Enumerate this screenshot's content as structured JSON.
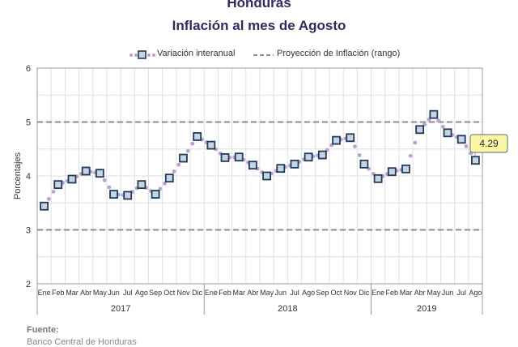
{
  "header": {
    "title": "Honduras",
    "subtitle": "Inflación al mes de Agosto"
  },
  "legend": {
    "series_label": "Variación interanual",
    "projection_label": "Proyección de Inflación (rango)"
  },
  "footer": {
    "source_label": "Fuente:",
    "source_text": "Banco Central de Honduras"
  },
  "colors": {
    "marker_edge": "#1f3b57",
    "marker_fill": "#c7d4e6",
    "dots": "#b9a2cf",
    "projection": "#8c8c8c",
    "grid": "#e0e0e0",
    "callout_fill": "#fcf7a6",
    "title": "#2d2d5e"
  },
  "chart_data": {
    "type": "line",
    "ylabel": "Porcentajes",
    "ylim": [
      2,
      6
    ],
    "yticks": [
      "2",
      "3",
      "4",
      "5",
      "6"
    ],
    "months": [
      "Ene",
      "Feb",
      "Mar",
      "Abr",
      "May",
      "Jun",
      "Jul",
      "Ago",
      "Sep",
      "Oct",
      "Nov",
      "Dic",
      "Ene",
      "Feb",
      "Mar",
      "Abr",
      "May",
      "Jun",
      "Jul",
      "Ago",
      "Sep",
      "Oct",
      "Nov",
      "Dic",
      "Ene",
      "Feb",
      "Mar",
      "Abr",
      "May",
      "Jun",
      "Jul",
      "Ago"
    ],
    "years": [
      {
        "label": "2017",
        "start": 0,
        "count": 12
      },
      {
        "label": "2018",
        "start": 12,
        "count": 12
      },
      {
        "label": "2019",
        "start": 24,
        "count": 8
      }
    ],
    "series": [
      {
        "name": "Variación interanual",
        "values": [
          3.44,
          3.84,
          3.94,
          4.09,
          4.05,
          3.66,
          3.64,
          3.84,
          3.66,
          3.96,
          4.33,
          4.73,
          4.57,
          4.34,
          4.35,
          4.2,
          4.0,
          4.14,
          4.22,
          4.35,
          4.39,
          4.66,
          4.71,
          4.22,
          3.95,
          4.08,
          4.13,
          4.86,
          5.14,
          4.8,
          4.68,
          4.29
        ]
      }
    ],
    "projection_range": [
      3,
      5
    ],
    "callout": {
      "value": "4.29",
      "index": 31
    }
  }
}
